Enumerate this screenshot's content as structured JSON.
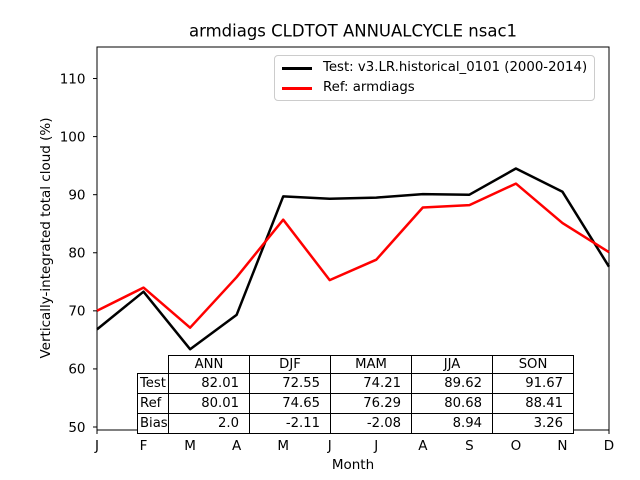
{
  "chart_data": {
    "type": "line",
    "title": "armdiags CLDTOT ANNUALCYCLE nsac1",
    "xlabel": "Month",
    "ylabel": "Vertically-integrated total cloud (%)",
    "categories": [
      "J",
      "F",
      "M",
      "A",
      "M",
      "J",
      "J",
      "A",
      "S",
      "O",
      "N",
      "D"
    ],
    "yticks": [
      110,
      100,
      90,
      80,
      70,
      60,
      50
    ],
    "ylim": [
      49.5,
      115.5
    ],
    "grid": false,
    "legend_position": "upper center",
    "series": [
      {
        "name": "Test: v3.LR.historical_0101 (2000-2014)",
        "color": "#000000",
        "values": [
          66.8,
          73.3,
          63.4,
          69.3,
          89.7,
          89.3,
          89.5,
          90.1,
          90.0,
          94.5,
          90.5,
          77.6
        ]
      },
      {
        "name": "Ref: armdiags",
        "color": "#ff0000",
        "values": [
          70.0,
          74.0,
          67.1,
          75.8,
          85.7,
          75.3,
          78.8,
          87.8,
          88.2,
          91.9,
          85.1,
          80.1
        ]
      }
    ],
    "table": {
      "col_headers": [
        "ANN",
        "DJF",
        "MAM",
        "JJA",
        "SON"
      ],
      "rows": [
        {
          "label": "Test",
          "values": [
            "82.01",
            "72.55",
            "74.21",
            "89.62",
            "91.67"
          ]
        },
        {
          "label": "Ref",
          "values": [
            "80.01",
            "74.65",
            "76.29",
            "80.68",
            "88.41"
          ]
        },
        {
          "label": "Bias",
          "values": [
            "2.0",
            "-2.11",
            "-2.08",
            "8.94",
            "3.26"
          ]
        }
      ]
    }
  }
}
